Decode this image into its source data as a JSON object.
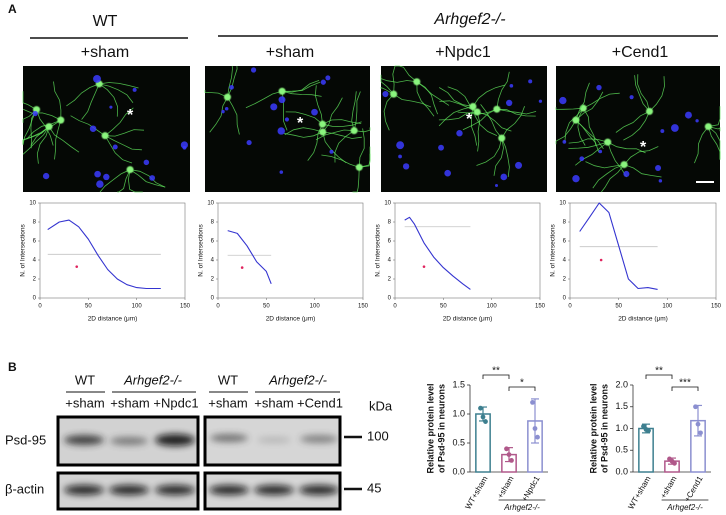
{
  "panel_a": {
    "label": "A",
    "groups": [
      {
        "title": "WT",
        "conditions": [
          "+sham"
        ]
      },
      {
        "title": "Arhgef2-/-",
        "conditions": [
          "+sham",
          "+Npdc1",
          "+Cend1"
        ]
      }
    ],
    "image_markers": [
      "*",
      "*",
      "*",
      "*"
    ]
  },
  "panel_b": {
    "label": "B",
    "blots": [
      {
        "groups": [
          {
            "title": "WT",
            "conditions": [
              "+sham"
            ]
          },
          {
            "title": "Arhgef2-/-",
            "conditions": [
              "+sham",
              "+Npdc1"
            ]
          }
        ]
      },
      {
        "groups": [
          {
            "title": "WT",
            "conditions": [
              "+sham"
            ]
          },
          {
            "title": "Arhgef2-/-",
            "conditions": [
              "+sham",
              "+Cend1"
            ]
          }
        ]
      }
    ],
    "rows": [
      "Psd-95",
      "β-actin"
    ],
    "unit": "kDa",
    "sizes": [
      100,
      45
    ]
  },
  "chart_data": [
    {
      "type": "line",
      "xlabel": "2D distance (μm)",
      "ylabel": "N. of Intersections",
      "xlim": [
        0,
        150
      ],
      "ylim": [
        0,
        10
      ],
      "xticks": [
        0,
        50,
        100,
        150
      ],
      "yticks": [
        0,
        2,
        4,
        6,
        8,
        10
      ],
      "series": [
        {
          "color": "#3434d0",
          "x": [
            8,
            20,
            30,
            40,
            50,
            60,
            70,
            80,
            90,
            100,
            110,
            125
          ],
          "values": [
            7.2,
            8,
            8.2,
            7.5,
            6.2,
            4.5,
            3,
            2,
            1.4,
            1.1,
            1,
            1
          ]
        }
      ],
      "reference_line": {
        "value": 4.6,
        "x": [
          8,
          125
        ],
        "color": "#c4c4c4"
      },
      "highlight_point": {
        "x": 38,
        "value": 3.3,
        "color": "#e0245e"
      }
    },
    {
      "type": "line",
      "xlabel": "2D distance (μm)",
      "ylabel": "N. of Intersections",
      "xlim": [
        0,
        150
      ],
      "ylim": [
        0,
        10
      ],
      "xticks": [
        0,
        50,
        100,
        150
      ],
      "yticks": [
        0,
        2,
        4,
        6,
        8,
        10
      ],
      "series": [
        {
          "color": "#3434d0",
          "x": [
            10,
            20,
            30,
            40,
            50,
            55
          ],
          "values": [
            7.1,
            6.8,
            5.5,
            3.8,
            2.8,
            1.5
          ]
        }
      ],
      "reference_line": {
        "value": 4.5,
        "x": [
          10,
          55
        ],
        "color": "#c4c4c4"
      },
      "highlight_point": {
        "x": 25,
        "value": 3.2,
        "color": "#e0245e"
      }
    },
    {
      "type": "line",
      "xlabel": "2D distance (μm)",
      "ylabel": "N. of Intersections",
      "xlim": [
        0,
        150
      ],
      "ylim": [
        0,
        10
      ],
      "xticks": [
        0,
        50,
        100,
        150
      ],
      "yticks": [
        0,
        2,
        4,
        6,
        8,
        10
      ],
      "series": [
        {
          "color": "#3434d0",
          "x": [
            10,
            15,
            20,
            30,
            40,
            50,
            60,
            70,
            78
          ],
          "values": [
            8.2,
            8.5,
            7.8,
            5.8,
            4.3,
            3.2,
            2.3,
            1.5,
            0.9
          ]
        }
      ],
      "reference_line": {
        "value": 7.5,
        "x": [
          10,
          78
        ],
        "color": "#c4c4c4"
      },
      "highlight_point": {
        "x": 30,
        "value": 3.3,
        "color": "#e0245e"
      }
    },
    {
      "type": "line",
      "xlabel": "2D distance (μm)",
      "ylabel": "N. of Intersections",
      "xlim": [
        0,
        150
      ],
      "ylim": [
        0,
        10
      ],
      "xticks": [
        0,
        50,
        100,
        150
      ],
      "yticks": [
        0,
        2,
        4,
        6,
        8,
        10
      ],
      "series": [
        {
          "color": "#3434d0",
          "x": [
            10,
            20,
            30,
            40,
            50,
            60,
            70,
            80,
            90
          ],
          "values": [
            7,
            8.5,
            10,
            9,
            5.5,
            2,
            1,
            1.1,
            0.9
          ]
        }
      ],
      "reference_line": {
        "value": 5.4,
        "x": [
          10,
          90
        ],
        "color": "#c4c4c4"
      },
      "highlight_point": {
        "x": 32,
        "value": 4,
        "color": "#e0245e"
      }
    },
    {
      "type": "bar",
      "ylabel": [
        "Relative protein level",
        "of Psd-95 in neurons"
      ],
      "categories": [
        "WT+sham",
        "+sham",
        "+Npdc1"
      ],
      "colors": [
        "#3d7f8f",
        "#b0588a",
        "#8b8fd0"
      ],
      "values": [
        1.0,
        0.3,
        0.88
      ],
      "errors": [
        0.12,
        0.12,
        0.38
      ],
      "points": [
        [
          1.1,
          0.95,
          0.87
        ],
        [
          0.4,
          0.3,
          0.2
        ],
        [
          1.2,
          0.75,
          0.6
        ]
      ],
      "ylim": [
        0,
        1.5
      ],
      "yticks": [
        {
          "value": 0,
          "label": "0.0"
        },
        0.5,
        {
          "value": 1,
          "label": "1.0"
        },
        1.5
      ],
      "significance": [
        {
          "from": 0,
          "to": 1,
          "label": "**"
        },
        {
          "from": 1,
          "to": 2,
          "label": "*"
        }
      ],
      "group_label": {
        "text": "Arhgef2-/-",
        "from": 1,
        "to": 2
      }
    },
    {
      "type": "bar",
      "ylabel": [
        "Relative protein level",
        "of Psd-95 in neurons"
      ],
      "categories": [
        "WT+sham",
        "+sham",
        "+Cend1"
      ],
      "colors": [
        "#3d7f8f",
        "#b0588a",
        "#8b8fd0"
      ],
      "values": [
        1.0,
        0.25,
        1.18
      ],
      "errors": [
        0.1,
        0.07,
        0.35
      ],
      "points": [
        [
          1.05,
          0.98,
          0.95
        ],
        [
          0.3,
          0.25,
          0.2
        ],
        [
          1.5,
          1.1,
          0.9
        ]
      ],
      "ylim": [
        0,
        2
      ],
      "yticks": [
        {
          "value": 0,
          "label": "0.0"
        },
        0.5,
        {
          "value": 1,
          "label": "1.0"
        },
        1.5,
        {
          "value": 2,
          "label": "2.0"
        }
      ],
      "significance": [
        {
          "from": 0,
          "to": 1,
          "label": "**"
        },
        {
          "from": 1,
          "to": 2,
          "label": "***"
        }
      ],
      "group_label": {
        "text": "Arhgef2-/-",
        "from": 1,
        "to": 2
      }
    }
  ]
}
